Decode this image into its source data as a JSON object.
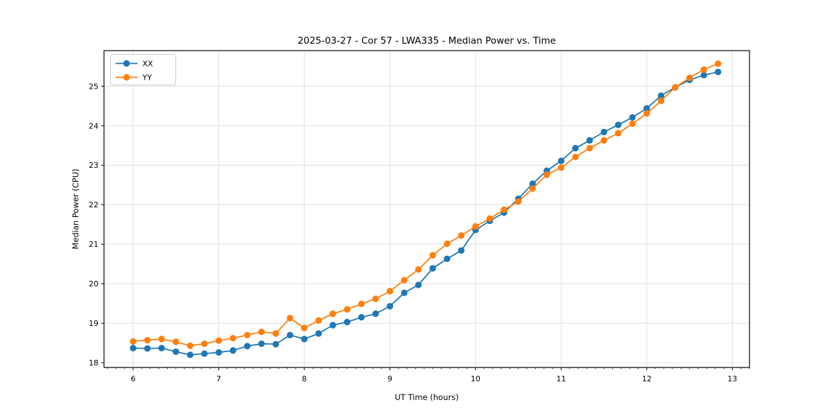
{
  "chart_data": {
    "type": "line",
    "title": "2025-03-27 - Cor 57 - LWA335 - Median Power vs. Time",
    "xlabel": "UT Time (hours)",
    "ylabel": "Median Power (CPU)",
    "xlim": [
      5.66,
      13.2
    ],
    "ylim": [
      17.88,
      25.9
    ],
    "xticks": [
      6,
      7,
      8,
      9,
      10,
      11,
      12,
      13
    ],
    "yticks": [
      18,
      19,
      20,
      21,
      22,
      23,
      24,
      25
    ],
    "x_minor_step": 0.1,
    "grid": true,
    "grid_color": "#dcdcdc",
    "legend_position": "upper-left",
    "x": [
      6.0,
      6.167,
      6.333,
      6.5,
      6.667,
      6.833,
      7.0,
      7.167,
      7.333,
      7.5,
      7.667,
      7.833,
      8.0,
      8.167,
      8.333,
      8.5,
      8.667,
      8.833,
      9.0,
      9.167,
      9.333,
      9.5,
      9.667,
      9.833,
      10.0,
      10.167,
      10.333,
      10.5,
      10.667,
      10.833,
      11.0,
      11.167,
      11.333,
      11.5,
      11.667,
      11.833,
      12.0,
      12.167,
      12.333,
      12.5,
      12.667,
      12.833
    ],
    "series": [
      {
        "name": "XX",
        "color": "#1f77b4",
        "values": [
          18.37,
          18.36,
          18.37,
          18.28,
          18.2,
          18.23,
          18.26,
          18.31,
          18.42,
          18.48,
          18.47,
          18.7,
          18.6,
          18.74,
          18.95,
          19.03,
          19.15,
          19.24,
          19.43,
          19.77,
          19.97,
          20.39,
          20.63,
          20.84,
          21.36,
          21.59,
          21.8,
          22.15,
          22.53,
          22.86,
          23.11,
          23.43,
          23.63,
          23.84,
          24.02,
          24.21,
          24.44,
          24.76,
          24.97,
          25.16,
          25.28,
          25.36
        ]
      },
      {
        "name": "YY",
        "color": "#ff7f0e",
        "values": [
          18.54,
          18.57,
          18.6,
          18.53,
          18.43,
          18.48,
          18.56,
          18.62,
          18.7,
          18.78,
          18.74,
          19.13,
          18.88,
          19.07,
          19.24,
          19.35,
          19.49,
          19.62,
          19.81,
          20.09,
          20.36,
          20.72,
          21.01,
          21.22,
          21.45,
          21.65,
          21.87,
          22.08,
          22.41,
          22.76,
          22.94,
          23.21,
          23.43,
          23.63,
          23.81,
          24.05,
          24.31,
          24.63,
          24.97,
          25.21,
          25.42,
          25.57
        ]
      }
    ]
  },
  "colors": {
    "background": "#ffffff",
    "spine": "#000000",
    "grid": "#dcdcdc",
    "series_xx": "#1f77b4",
    "series_yy": "#ff7f0e",
    "legend_border": "#cccccc"
  }
}
